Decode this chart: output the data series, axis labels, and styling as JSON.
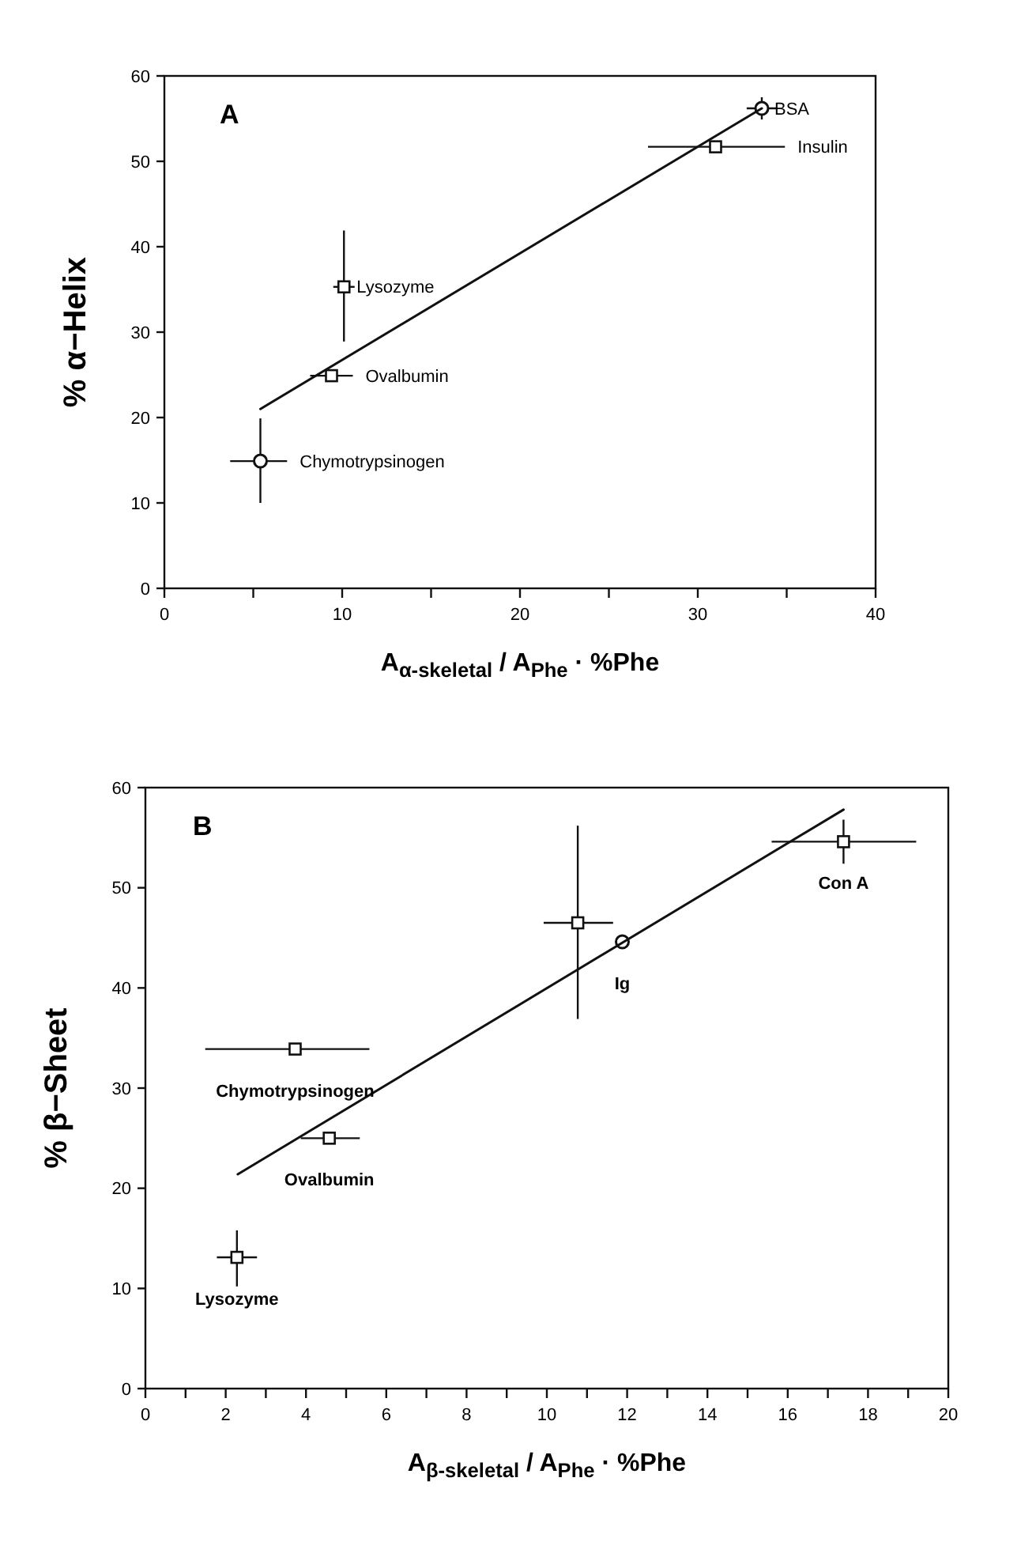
{
  "chart_data": [
    {
      "type": "scatter",
      "ylabel": "% α−Helix",
      "xlabel": "A$_{α-skeletal}$ / A$_{Phe}$ · %Phe",
      "xlim": [
        0,
        40
      ],
      "ylim": [
        0,
        60
      ],
      "xticks": [
        0,
        {
          "value": 5,
          "label": null
        },
        10,
        {
          "value": 15,
          "label": null
        },
        20,
        {
          "value": 25,
          "label": null
        },
        30,
        {
          "value": 35,
          "label": null
        },
        40
      ],
      "yticks": [
        0,
        10,
        20,
        30,
        40,
        50,
        60
      ],
      "series": [
        {
          "color": "#111111",
          "marker": "circle",
          "x": [
            33.6,
            5.4
          ],
          "values": [
            56.2,
            14.9
          ],
          "errors": [
            1.3,
            [
              10.0,
              19.9
            ]
          ],
          "xerrors": [
            0.85,
            [
              3.7,
              6.9
            ]
          ]
        },
        {
          "color": "#111111",
          "marker": "square",
          "x": [
            31.0,
            10.1,
            9.4
          ],
          "values": [
            51.7,
            35.3,
            24.9
          ],
          "errors": [
            null,
            [
              28.9,
              41.9
            ],
            null
          ],
          "xerrors": [
            [
              27.2,
              34.9
            ],
            0.6,
            [
              8.2,
              10.6
            ]
          ]
        },
        {
          "type": "line",
          "color": "#111111",
          "marker": "none",
          "line_style": "solid",
          "x": [
            5.4,
            33.6
          ],
          "values": [
            21.0,
            56.2
          ]
        }
      ],
      "annotations": [
        "A",
        {
          "text": "BSA",
          "x": 33.6,
          "y": 56.2
        },
        {
          "text": "Insulin",
          "x": 34.9,
          "y": 51.7
        },
        {
          "text": "Lysozyme",
          "x": 10.1,
          "y": 35.3
        },
        {
          "text": "Ovalbumin",
          "x": 10.6,
          "y": 24.9
        },
        {
          "text": "Chymotrypsinogen",
          "x": 6.9,
          "y": 14.9
        }
      ]
    },
    {
      "type": "scatter",
      "ylabel": "% β−Sheet",
      "xlabel": "A$_{β-skeletal}$ / A$_{Phe}$ · %Phe",
      "xlim": [
        0,
        20
      ],
      "ylim": [
        0,
        60
      ],
      "xticks": [
        0,
        {
          "value": 1,
          "label": null
        },
        2,
        {
          "value": 3,
          "label": null
        },
        4,
        {
          "value": 5,
          "label": null
        },
        6,
        {
          "value": 7,
          "label": null
        },
        8,
        {
          "value": 9,
          "label": null
        },
        10,
        {
          "value": 11,
          "label": null
        },
        12,
        {
          "value": 13,
          "label": null
        },
        14,
        {
          "value": 15,
          "label": null
        },
        16,
        {
          "value": 17,
          "label": null
        },
        18,
        {
          "value": 19,
          "label": null
        },
        20
      ],
      "yticks": [
        0,
        10,
        20,
        30,
        40,
        50,
        60
      ],
      "series": [
        {
          "color": "#111111",
          "marker": "square",
          "x": [
            2.28,
            4.58,
            3.73,
            10.77,
            17.39
          ],
          "values": [
            13.1,
            25.0,
            33.9,
            46.5,
            54.6
          ],
          "errors": [
            [
              10.2,
              15.8
            ],
            null,
            null,
            [
              36.9,
              56.2
            ],
            [
              52.4,
              56.8
            ]
          ],
          "xerrors": [
            [
              1.78,
              2.78
            ],
            [
              3.87,
              5.34
            ],
            [
              1.49,
              5.58
            ],
            [
              9.92,
              11.65
            ],
            [
              15.6,
              19.2
            ]
          ]
        },
        {
          "color": "#111111",
          "marker": "circle",
          "x": [
            11.88
          ],
          "values": [
            44.6
          ]
        },
        {
          "type": "line",
          "color": "#111111",
          "marker": "none",
          "line_style": "solid",
          "x": [
            2.3,
            17.39
          ],
          "values": [
            21.4,
            57.8
          ]
        }
      ],
      "annotations": [
        "B",
        {
          "text": "Lysozyme",
          "x": 2.28,
          "y": 13.1
        },
        {
          "text": "Ovalbumin",
          "x": 4.58,
          "y": 25.0
        },
        {
          "text": "Chymotrypsinogen",
          "x": 3.73,
          "y": 33.9
        },
        {
          "text": "Ig",
          "x": 11.88,
          "y": 44.6
        },
        {
          "text": "Con A",
          "x": 17.39,
          "y": 54.6
        }
      ]
    }
  ]
}
